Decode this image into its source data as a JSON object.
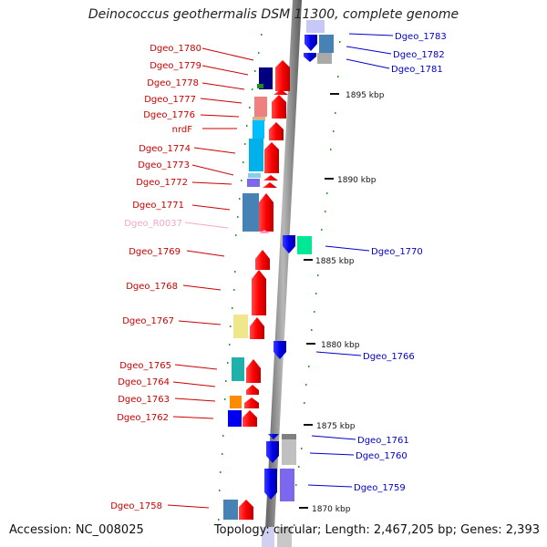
{
  "title": "Deinococcus geothermalis DSM 11300, complete genome",
  "accession": "Accession: NC_008025",
  "summary": "Topology: circular; Length: 2,467,205 bp; Genes: 2,393",
  "scale_labels": [
    "1895 kbp",
    "1890 kbp",
    "1885 kbp",
    "1880 kbp",
    "1875 kbp",
    "1870 kbp"
  ],
  "genes_left": [
    {
      "name": "Dgeo_1780",
      "color": "#cc0000"
    },
    {
      "name": "Dgeo_1779",
      "color": "#cc0000"
    },
    {
      "name": "Dgeo_1778",
      "color": "#cc0000"
    },
    {
      "name": "Dgeo_1777",
      "color": "#cc0000"
    },
    {
      "name": "Dgeo_1776",
      "color": "#cc0000"
    },
    {
      "name": "nrdF",
      "color": "#cc0000"
    },
    {
      "name": "Dgeo_1774",
      "color": "#cc0000"
    },
    {
      "name": "Dgeo_1773",
      "color": "#cc0000"
    },
    {
      "name": "Dgeo_1772",
      "color": "#cc0000"
    },
    {
      "name": "Dgeo_1771",
      "color": "#cc0000"
    },
    {
      "name": "Dgeo_R0037",
      "color": "#f4a6c4"
    },
    {
      "name": "Dgeo_1769",
      "color": "#cc0000"
    },
    {
      "name": "Dgeo_1768",
      "color": "#cc0000"
    },
    {
      "name": "Dgeo_1767",
      "color": "#cc0000"
    },
    {
      "name": "Dgeo_1765",
      "color": "#cc0000"
    },
    {
      "name": "Dgeo_1764",
      "color": "#cc0000"
    },
    {
      "name": "Dgeo_1763",
      "color": "#cc0000"
    },
    {
      "name": "Dgeo_1762",
      "color": "#cc0000"
    },
    {
      "name": "Dgeo_1758",
      "color": "#cc0000"
    }
  ],
  "genes_right": [
    {
      "name": "Dgeo_1783",
      "color": "#0000cc"
    },
    {
      "name": "Dgeo_1782",
      "color": "#0000cc"
    },
    {
      "name": "Dgeo_1781",
      "color": "#0000cc"
    },
    {
      "name": "Dgeo_1770",
      "color": "#0000cc"
    },
    {
      "name": "Dgeo_1766",
      "color": "#0000cc"
    },
    {
      "name": "Dgeo_1761",
      "color": "#0000cc"
    },
    {
      "name": "Dgeo_1760",
      "color": "#0000cc"
    },
    {
      "name": "Dgeo_1759",
      "color": "#0000cc"
    }
  ]
}
